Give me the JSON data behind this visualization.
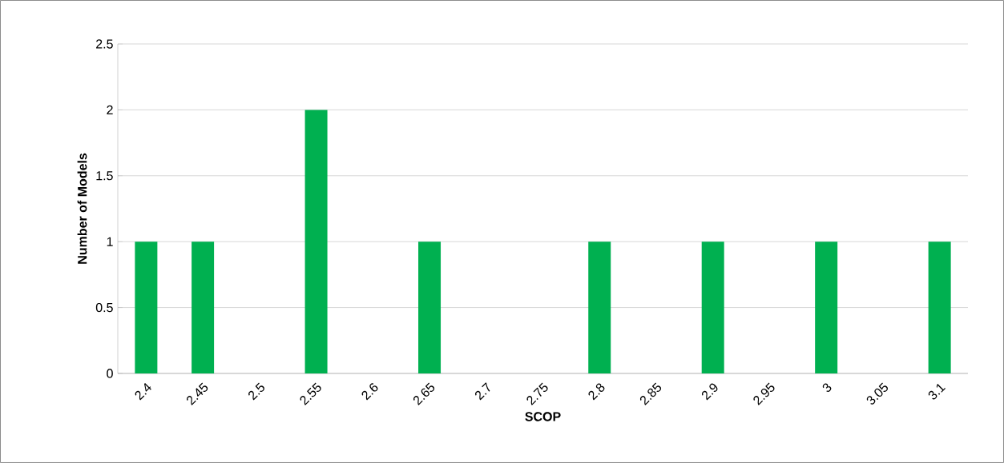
{
  "chart_data": {
    "type": "bar",
    "xlabel": "SCOP",
    "ylabel": "Number of Models",
    "categories": [
      "2.4",
      "2.45",
      "2.5",
      "2.55",
      "2.6",
      "2.65",
      "2.7",
      "2.75",
      "2.8",
      "2.85",
      "2.9",
      "2.95",
      "3",
      "3.05",
      "3.1"
    ],
    "values": [
      1,
      1,
      0,
      2,
      0,
      1,
      0,
      0,
      1,
      0,
      1,
      0,
      1,
      0,
      1
    ],
    "color": "#00b050",
    "ylim": [
      0,
      2.5
    ],
    "yticks": [
      0,
      0.5,
      1,
      1.5,
      2,
      2.5
    ],
    "grid": "y"
  }
}
